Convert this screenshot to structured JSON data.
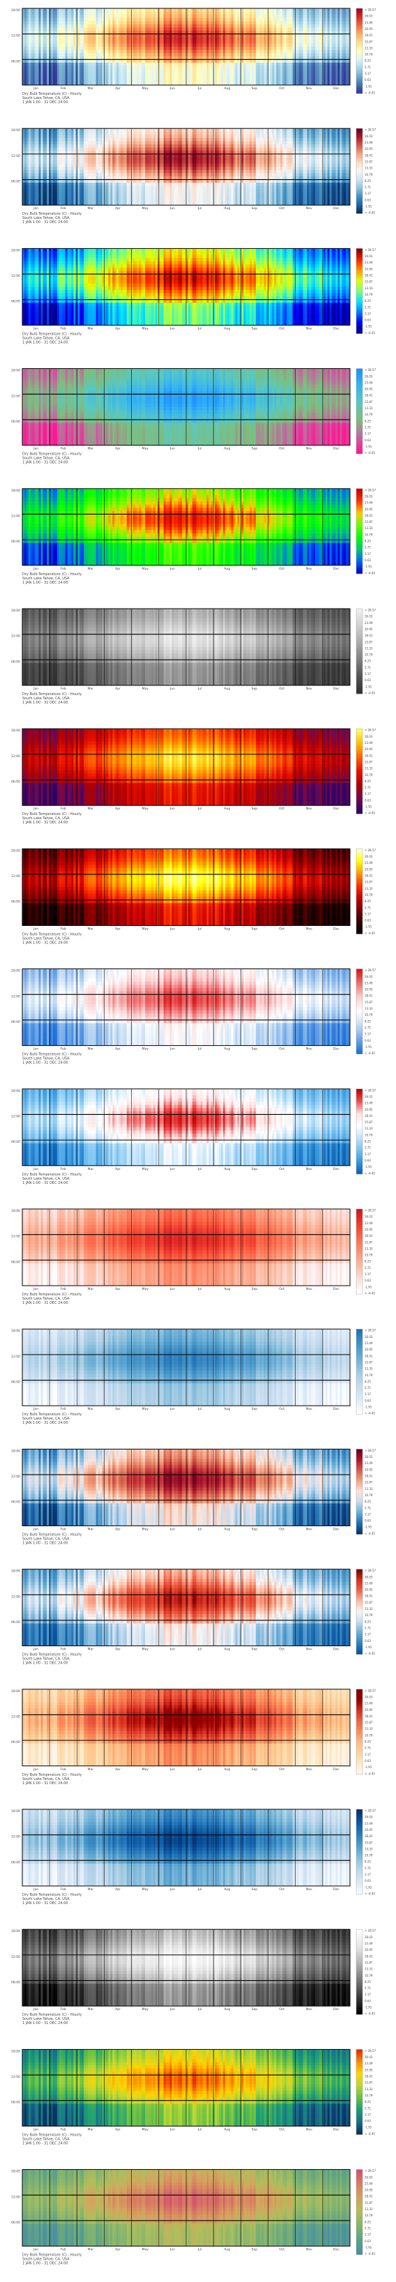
{
  "chart_data": [
    {
      "type": "heatmap",
      "colormap": "cmap_01",
      "title": "Dry Bulb Temperature (C) - Hourly",
      "subtitle": "South Lake Tahoe, CA, USA",
      "period": "1 JAN 1:00 - 31 DEC 24:00",
      "y_ticks": [
        "18:00",
        "12:00",
        "06:00"
      ],
      "months": [
        "Jan",
        "Feb",
        "Mar",
        "Apr",
        "May",
        "Jun",
        "Jul",
        "Aug",
        "Sep",
        "Oct",
        "Nov",
        "Dec"
      ],
      "legend_labels": [
        "> 28.57",
        "26.03",
        "23.49",
        "20.95",
        "18.41",
        "15.87",
        "13.33",
        "10.79",
        "8.25",
        "5.71",
        "3.17",
        "0.63",
        "-1.91",
        "< -4.45"
      ]
    },
    {
      "type": "heatmap",
      "colormap": "cmap_02",
      "title": "Dry Bulb Temperature (C) - Hourly",
      "subtitle": "South Lake Tahoe, CA, USA",
      "period": "1 JAN 1:00 - 31 DEC 24:00",
      "y_ticks": [
        "18:00",
        "12:00",
        "06:00"
      ],
      "months": [
        "Jan",
        "Feb",
        "Mar",
        "Apr",
        "May",
        "Jun",
        "Jul",
        "Aug",
        "Sep",
        "Oct",
        "Nov",
        "Dec"
      ],
      "legend_labels": [
        "> 28.57",
        "26.03",
        "23.49",
        "20.95",
        "18.41",
        "15.87",
        "13.33",
        "10.79",
        "8.25",
        "5.71",
        "3.17",
        "0.63",
        "-1.91",
        "< -4.45"
      ]
    },
    {
      "type": "heatmap",
      "colormap": "cmap_03",
      "title": "Dry Bulb Temperature (C) - Hourly",
      "subtitle": "South Lake Tahoe, CA, USA",
      "period": "1 JAN 1:00 - 31 DEC 24:00",
      "y_ticks": [
        "18:00",
        "12:00",
        "06:00"
      ],
      "months": [
        "Jan",
        "Feb",
        "Mar",
        "Apr",
        "May",
        "Jun",
        "Jul",
        "Aug",
        "Sep",
        "Oct",
        "Nov",
        "Dec"
      ],
      "legend_labels": [
        "> 28.57",
        "26.03",
        "23.49",
        "20.95",
        "18.41",
        "15.87",
        "13.33",
        "10.79",
        "8.25",
        "5.71",
        "3.17",
        "0.63",
        "-1.91",
        "< -4.45"
      ]
    },
    {
      "type": "heatmap",
      "colormap": "cmap_04",
      "title": "Dry Bulb Temperature (C) - Hourly",
      "subtitle": "South Lake Tahoe, CA, USA",
      "period": "1 JAN 1:00 - 31 DEC 24:00",
      "y_ticks": [
        "18:00",
        "12:00",
        "06:00"
      ],
      "months": [
        "Jan",
        "Feb",
        "Mar",
        "Apr",
        "May",
        "Jun",
        "Jul",
        "Aug",
        "Sep",
        "Oct",
        "Nov",
        "Dec"
      ],
      "legend_labels": [
        "> 28.57",
        "26.03",
        "23.49",
        "20.95",
        "18.41",
        "15.87",
        "13.33",
        "10.79",
        "8.25",
        "5.71",
        "3.17",
        "0.63",
        "-1.91",
        "< -4.45"
      ]
    },
    {
      "type": "heatmap",
      "colormap": "cmap_05",
      "title": "Dry Bulb Temperature (C) - Hourly",
      "subtitle": "South Lake Tahoe, CA, USA",
      "period": "1 JAN 1:00 - 31 DEC 24:00",
      "y_ticks": [
        "18:00",
        "12:00",
        "06:00"
      ],
      "months": [
        "Jan",
        "Feb",
        "Mar",
        "Apr",
        "May",
        "Jun",
        "Jul",
        "Aug",
        "Sep",
        "Oct",
        "Nov",
        "Dec"
      ],
      "legend_labels": [
        "> 28.57",
        "26.03",
        "23.49",
        "20.95",
        "18.41",
        "15.87",
        "13.33",
        "10.79",
        "8.25",
        "5.71",
        "3.17",
        "0.63",
        "-1.91",
        "< -4.45"
      ]
    },
    {
      "type": "heatmap",
      "colormap": "cmap_06",
      "title": "Dry Bulb Temperature (C) - Hourly",
      "subtitle": "South Lake Tahoe, CA, USA",
      "period": "1 JAN 1:00 - 31 DEC 24:00",
      "y_ticks": [
        "18:00",
        "12:00",
        "06:00"
      ],
      "months": [
        "Jan",
        "Feb",
        "Mar",
        "Apr",
        "May",
        "Jun",
        "Jul",
        "Aug",
        "Sep",
        "Oct",
        "Nov",
        "Dec"
      ],
      "legend_labels": [
        "> 28.57",
        "26.03",
        "23.49",
        "20.95",
        "18.41",
        "15.87",
        "13.33",
        "10.79",
        "8.25",
        "5.71",
        "3.17",
        "0.63",
        "-1.91",
        "< -4.45"
      ]
    },
    {
      "type": "heatmap",
      "colormap": "cmap_07",
      "title": "Dry Bulb Temperature (C) - Hourly",
      "subtitle": "South Lake Tahoe, CA, USA",
      "period": "1 JAN 1:00 - 31 DEC 24:00",
      "y_ticks": [
        "18:00",
        "12:00",
        "06:00"
      ],
      "months": [
        "Jan",
        "Feb",
        "Mar",
        "Apr",
        "May",
        "Jun",
        "Jul",
        "Aug",
        "Sep",
        "Oct",
        "Nov",
        "Dec"
      ],
      "legend_labels": [
        "> 28.57",
        "26.03",
        "23.49",
        "20.95",
        "18.41",
        "15.87",
        "13.33",
        "10.79",
        "8.25",
        "5.71",
        "3.17",
        "0.63",
        "-1.91",
        "< -4.45"
      ]
    },
    {
      "type": "heatmap",
      "colormap": "cmap_08",
      "title": "Dry Bulb Temperature (C) - Hourly",
      "subtitle": "South Lake Tahoe, CA, USA",
      "period": "1 JAN 1:00 - 31 DEC 24:00",
      "y_ticks": [
        "18:00",
        "12:00",
        "06:00"
      ],
      "months": [
        "Jan",
        "Feb",
        "Mar",
        "Apr",
        "May",
        "Jun",
        "Jul",
        "Aug",
        "Sep",
        "Oct",
        "Nov",
        "Dec"
      ],
      "legend_labels": [
        "> 28.57",
        "26.03",
        "23.49",
        "20.95",
        "18.41",
        "15.87",
        "13.33",
        "10.79",
        "8.25",
        "5.71",
        "3.17",
        "0.63",
        "-1.91",
        "< -4.45"
      ]
    },
    {
      "type": "heatmap",
      "colormap": "cmap_09",
      "title": "Dry Bulb Temperature (C) - Hourly",
      "subtitle": "South Lake Tahoe, CA, USA",
      "period": "1 JAN 1:00 - 31 DEC 24:00",
      "y_ticks": [
        "18:00",
        "12:00",
        "06:00"
      ],
      "months": [
        "Jan",
        "Feb",
        "Mar",
        "Apr",
        "May",
        "Jun",
        "Jul",
        "Aug",
        "Sep",
        "Oct",
        "Nov",
        "Dec"
      ],
      "legend_labels": [
        "> 28.57",
        "26.03",
        "23.49",
        "20.95",
        "18.41",
        "15.87",
        "13.33",
        "10.79",
        "8.25",
        "5.71",
        "3.17",
        "0.63",
        "-1.91",
        "< -4.45"
      ]
    },
    {
      "type": "heatmap",
      "colormap": "cmap_10",
      "title": "Dry Bulb Temperature (C) - Hourly",
      "subtitle": "South Lake Tahoe, CA, USA",
      "period": "1 JAN 1:00 - 31 DEC 24:00",
      "y_ticks": [
        "18:00",
        "12:00",
        "06:00"
      ],
      "months": [
        "Jan",
        "Feb",
        "Mar",
        "Apr",
        "May",
        "Jun",
        "Jul",
        "Aug",
        "Sep",
        "Oct",
        "Nov",
        "Dec"
      ],
      "legend_labels": [
        "> 28.57",
        "26.03",
        "23.49",
        "20.95",
        "18.41",
        "15.87",
        "13.33",
        "10.79",
        "8.25",
        "5.71",
        "3.17",
        "0.63",
        "-1.91",
        "< -4.45"
      ]
    },
    {
      "type": "heatmap",
      "colormap": "cmap_11",
      "title": "Dry Bulb Temperature (C) - Hourly",
      "subtitle": "South Lake Tahoe, CA, USA",
      "period": "1 JAN 1:00 - 31 DEC 24:00",
      "y_ticks": [
        "18:00",
        "12:00",
        "06:00"
      ],
      "months": [
        "Jan",
        "Feb",
        "Mar",
        "Apr",
        "May",
        "Jun",
        "Jul",
        "Aug",
        "Sep",
        "Oct",
        "Nov",
        "Dec"
      ],
      "legend_labels": [
        "> 28.57",
        "26.03",
        "23.49",
        "20.95",
        "18.41",
        "15.87",
        "13.33",
        "10.79",
        "8.25",
        "5.71",
        "3.17",
        "0.63",
        "-1.91",
        "< -4.45"
      ]
    },
    {
      "type": "heatmap",
      "colormap": "cmap_12",
      "title": "Dry Bulb Temperature (C) - Hourly",
      "subtitle": "South Lake Tahoe, CA, USA",
      "period": "1 JAN 1:00 - 31 DEC 24:00",
      "y_ticks": [
        "18:00",
        "12:00",
        "06:00"
      ],
      "months": [
        "Jan",
        "Feb",
        "Mar",
        "Apr",
        "May",
        "Jun",
        "Jul",
        "Aug",
        "Sep",
        "Oct",
        "Nov",
        "Dec"
      ],
      "legend_labels": [
        "> 28.57",
        "26.03",
        "23.49",
        "20.95",
        "18.41",
        "15.87",
        "13.33",
        "10.79",
        "8.25",
        "5.71",
        "3.17",
        "0.63",
        "-1.91",
        "< -4.45"
      ]
    },
    {
      "type": "heatmap",
      "colormap": "cmap_13",
      "title": "Dry Bulb Temperature (C) - Hourly",
      "subtitle": "South Lake Tahoe, CA, USA",
      "period": "1 JAN 1:00 - 31 DEC 24:00",
      "y_ticks": [
        "18:00",
        "12:00",
        "06:00"
      ],
      "months": [
        "Jan",
        "Feb",
        "Mar",
        "Apr",
        "May",
        "Jun",
        "Jul",
        "Aug",
        "Sep",
        "Oct",
        "Nov",
        "Dec"
      ],
      "legend_labels": [
        "> 28.57",
        "26.03",
        "23.49",
        "20.95",
        "18.41",
        "15.87",
        "13.33",
        "10.79",
        "8.25",
        "5.71",
        "3.17",
        "0.63",
        "-1.91",
        "< -4.45"
      ]
    },
    {
      "type": "heatmap",
      "colormap": "cmap_14",
      "title": "Dry Bulb Temperature (C) - Hourly",
      "subtitle": "South Lake Tahoe, CA, USA",
      "period": "1 JAN 1:00 - 31 DEC 24:00",
      "y_ticks": [
        "18:00",
        "12:00",
        "06:00"
      ],
      "months": [
        "Jan",
        "Feb",
        "Mar",
        "Apr",
        "May",
        "Jun",
        "Jul",
        "Aug",
        "Sep",
        "Oct",
        "Nov",
        "Dec"
      ],
      "legend_labels": [
        "> 28.57",
        "26.03",
        "23.49",
        "20.95",
        "18.41",
        "15.87",
        "13.33",
        "10.79",
        "8.25",
        "5.71",
        "3.17",
        "0.63",
        "-1.91",
        "< -4.45"
      ]
    },
    {
      "type": "heatmap",
      "colormap": "cmap_15",
      "title": "Dry Bulb Temperature (C) - Hourly",
      "subtitle": "South Lake Tahoe, CA, USA",
      "period": "1 JAN 1:00 - 31 DEC 24:00",
      "y_ticks": [
        "18:00",
        "12:00",
        "06:00"
      ],
      "months": [
        "Jan",
        "Feb",
        "Mar",
        "Apr",
        "May",
        "Jun",
        "Jul",
        "Aug",
        "Sep",
        "Oct",
        "Nov",
        "Dec"
      ],
      "legend_labels": [
        "> 28.57",
        "26.03",
        "23.49",
        "20.95",
        "18.41",
        "15.87",
        "13.33",
        "10.79",
        "8.25",
        "5.71",
        "3.17",
        "0.63",
        "-1.91",
        "< -4.45"
      ]
    },
    {
      "type": "heatmap",
      "colormap": "cmap_16",
      "title": "Dry Bulb Temperature (C) - Hourly",
      "subtitle": "South Lake Tahoe, CA, USA",
      "period": "1 JAN 1:00 - 31 DEC 24:00",
      "y_ticks": [
        "18:00",
        "12:00",
        "06:00"
      ],
      "months": [
        "Jan",
        "Feb",
        "Mar",
        "Apr",
        "May",
        "Jun",
        "Jul",
        "Aug",
        "Sep",
        "Oct",
        "Nov",
        "Dec"
      ],
      "legend_labels": [
        "> 28.57",
        "26.03",
        "23.49",
        "20.95",
        "18.41",
        "15.87",
        "13.33",
        "10.79",
        "8.25",
        "5.71",
        "3.17",
        "0.63",
        "-1.91",
        "< -4.45"
      ]
    },
    {
      "type": "heatmap",
      "colormap": "cmap_17",
      "title": "Dry Bulb Temperature (C) - Hourly",
      "subtitle": "South Lake Tahoe, CA, USA",
      "period": "1 JAN 1:00 - 31 DEC 24:00",
      "y_ticks": [
        "18:00",
        "12:00",
        "06:00"
      ],
      "months": [
        "Jan",
        "Feb",
        "Mar",
        "Apr",
        "May",
        "Jun",
        "Jul",
        "Aug",
        "Sep",
        "Oct",
        "Nov",
        "Dec"
      ],
      "legend_labels": [
        "> 28.57",
        "26.03",
        "23.49",
        "20.95",
        "18.41",
        "15.87",
        "13.33",
        "10.79",
        "8.25",
        "5.71",
        "3.17",
        "0.63",
        "-1.91",
        "< -4.45"
      ]
    },
    {
      "type": "heatmap",
      "colormap": "cmap_18",
      "title": "Dry Bulb Temperature (C) - Hourly",
      "subtitle": "South Lake Tahoe, CA, USA",
      "period": "1 JAN 1:00 - 31 DEC 24:00",
      "y_ticks": [
        "18:00",
        "12:00",
        "06:00"
      ],
      "months": [
        "Jan",
        "Feb",
        "Mar",
        "Apr",
        "May",
        "Jun",
        "Jul",
        "Aug",
        "Sep",
        "Oct",
        "Nov",
        "Dec"
      ],
      "legend_labels": [
        "> 28.57",
        "26.03",
        "23.49",
        "20.95",
        "18.41",
        "15.87",
        "13.33",
        "10.79",
        "8.25",
        "5.71",
        "3.17",
        "0.63",
        "-1.91",
        "< -4.45"
      ]
    },
    {
      "type": "heatmap",
      "colormap": "cmap_19",
      "title": "Dry Bulb Temperature (C) - Hourly",
      "subtitle": "South Lake Tahoe, CA, USA",
      "period": "1 JAN 1:00 - 31 DEC 24:00",
      "y_ticks": [
        "18:00",
        "12:00",
        "06:00"
      ],
      "months": [
        "Jan",
        "Feb",
        "Mar",
        "Apr",
        "May",
        "Jun",
        "Jul",
        "Aug",
        "Sep",
        "Oct",
        "Nov",
        "Dec"
      ],
      "legend_labels": [
        "> 28.57",
        "26.03",
        "23.49",
        "20.95",
        "18.41",
        "15.87",
        "13.33",
        "10.79",
        "8.25",
        "5.71",
        "3.17",
        "0.63",
        "-1.91",
        "< -4.45"
      ]
    }
  ],
  "colormaps": {
    "cmap_01": [
      "#313695",
      "#4575b4",
      "#74add1",
      "#abd9e9",
      "#e0f3f8",
      "#ffffbf",
      "#fee090",
      "#fdae61",
      "#f46d43",
      "#d73027",
      "#a50026"
    ],
    "cmap_02": [
      "#053061",
      "#2166ac",
      "#4393c3",
      "#92c5de",
      "#d1e5f0",
      "#f7f7f7",
      "#fddbc7",
      "#f4a582",
      "#d6604d",
      "#b2182b",
      "#67001f"
    ],
    "cmap_03": [
      "#00007f",
      "#0000ff",
      "#0080ff",
      "#00e5ff",
      "#7dff7a",
      "#e5ff00",
      "#ff9400",
      "#ff1e00",
      "#7f0000"
    ],
    "cmap_04": [
      "#ff1493",
      "#c06aa0",
      "#7ebe7a",
      "#5ac8c0",
      "#38b6f0",
      "#1e90ff"
    ],
    "cmap_05": [
      "#0000cc",
      "#0066ff",
      "#00cc66",
      "#00ff00",
      "#66ff00",
      "#ffcc00",
      "#ff3300",
      "#cc0000"
    ],
    "cmap_06": [
      "#303030",
      "#555555",
      "#808080",
      "#aaaaaa",
      "#d0d0d0",
      "#f0f0f0"
    ],
    "cmap_07": [
      "#2b0063",
      "#6a0a55",
      "#b00000",
      "#e81000",
      "#ff6000",
      "#ffc000",
      "#ffff66"
    ],
    "cmap_08": [
      "#000000",
      "#330000",
      "#800000",
      "#cc0000",
      "#ff3300",
      "#ff9900",
      "#ffff00",
      "#ffffcc"
    ],
    "cmap_09": [
      "#1f6fd6",
      "#6ea8e8",
      "#c5dcf3",
      "#ffffff",
      "#fbd0d0",
      "#ef7070",
      "#d61515"
    ],
    "cmap_10": [
      "#0d5fb0",
      "#3a9ae0",
      "#7cc3f0",
      "#c4e4fa",
      "#ffffff",
      "#fce0e0",
      "#f05050",
      "#c00000"
    ],
    "cmap_11": [
      "#ffffff",
      "#fde0dd",
      "#fcbba1",
      "#fc9272",
      "#fb6a4a",
      "#ef3b2c",
      "#cb181d"
    ],
    "cmap_12": [
      "#ffffff",
      "#deebf7",
      "#c6dbef",
      "#9ecae1",
      "#6baed6",
      "#4292c6",
      "#2171b5"
    ],
    "cmap_13": [
      "#08306b",
      "#2171b5",
      "#6baed6",
      "#c6dbef",
      "#fbe6dc",
      "#f4a582",
      "#d6604d",
      "#b2182b",
      "#67001f"
    ],
    "cmap_14": [
      "#08519c",
      "#3182bd",
      "#6baed6",
      "#c6dbef",
      "#f7f7f7",
      "#fcbba1",
      "#ef6548",
      "#d7301f",
      "#7f0000"
    ],
    "cmap_15": [
      "#fff7ec",
      "#fee8c8",
      "#fdd49e",
      "#fdbb84",
      "#fc8d59",
      "#ef6548",
      "#d7301f",
      "#990000",
      "#7f0000"
    ],
    "cmap_16": [
      "#f7fbff",
      "#deebf7",
      "#c6dbef",
      "#9ecae1",
      "#6baed6",
      "#4292c6",
      "#2171b5",
      "#08519c",
      "#08306b"
    ],
    "cmap_17": [
      "#000000",
      "#3c3c3c",
      "#787878",
      "#b4b4b4",
      "#e6e6e6",
      "#ffffff"
    ],
    "cmap_18": [
      "#053061",
      "#1a6f8a",
      "#1b9e77",
      "#66c044",
      "#b8d836",
      "#ffd500",
      "#ff8c00",
      "#e02a00"
    ],
    "cmap_19": [
      "#4a8fa0",
      "#5ea385",
      "#84b46e",
      "#b0be5c",
      "#d4a55e",
      "#d97d62",
      "#d1516f"
    ]
  }
}
